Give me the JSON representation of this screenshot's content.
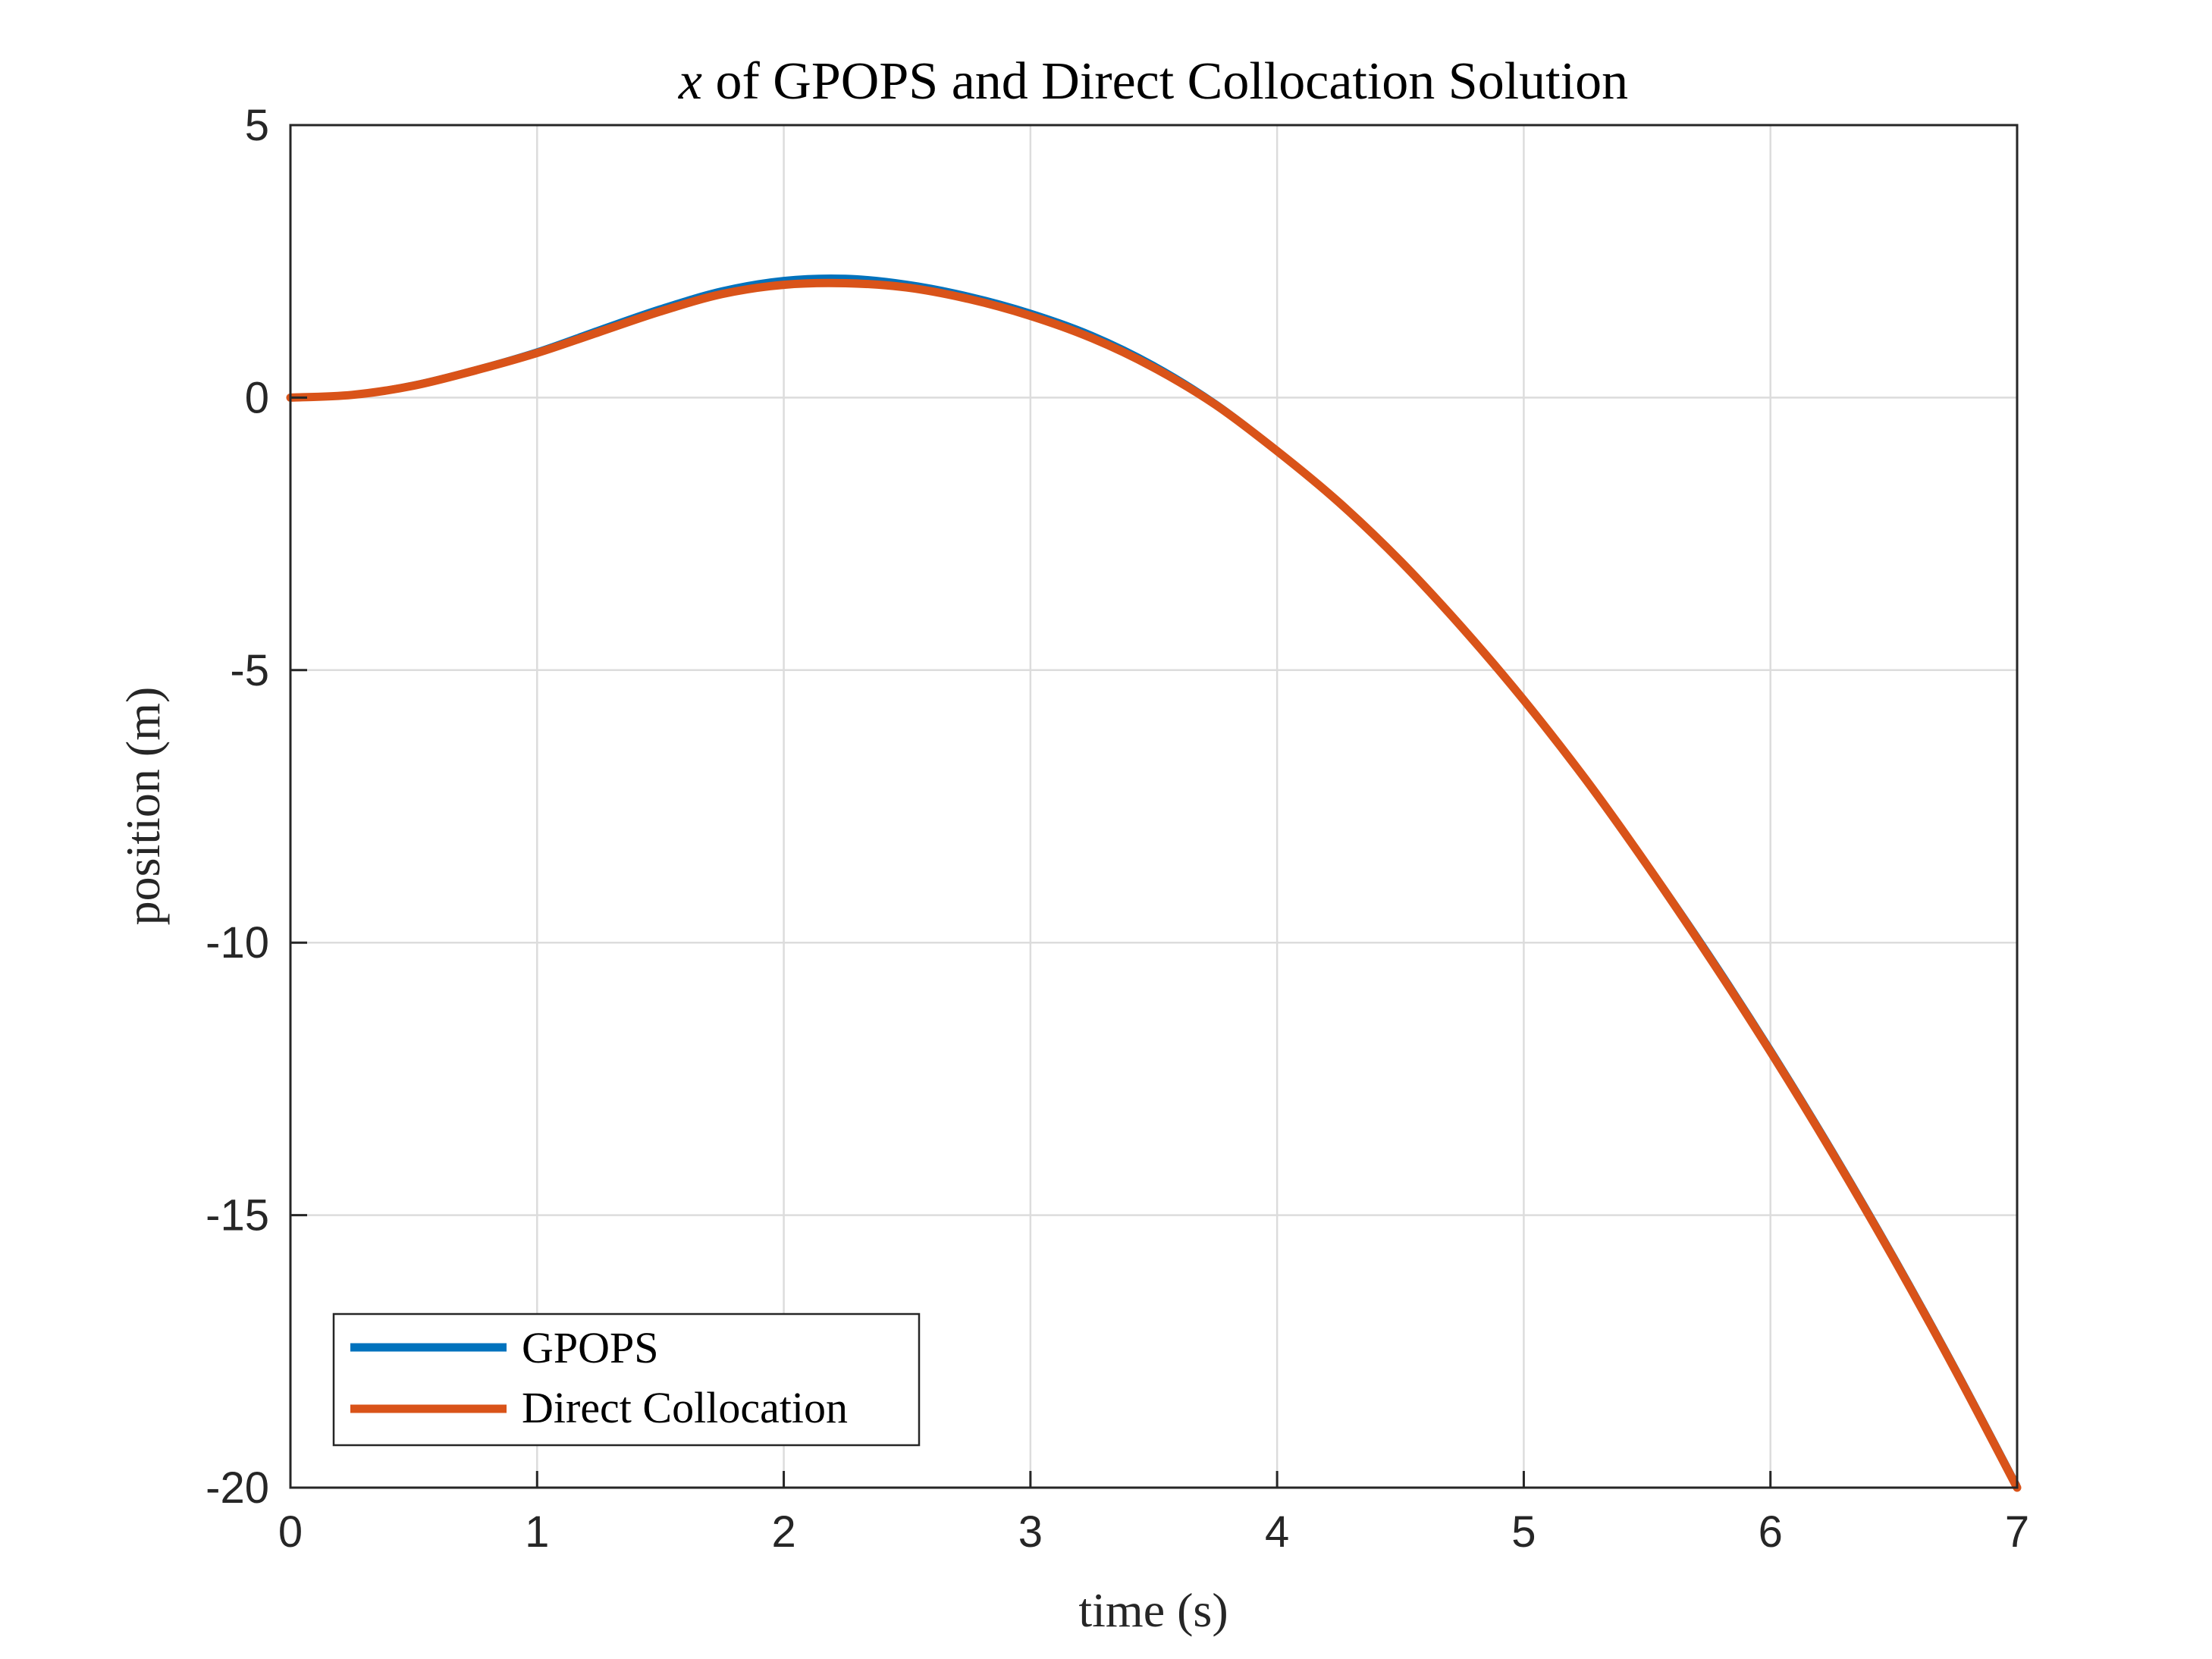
{
  "chart_data": {
    "type": "line",
    "title": "x of GPOPS and Direct Collocation Solution",
    "title_var": "x",
    "title_rest": " of GPOPS and Direct Collocation Solution",
    "xlabel": "time (s)",
    "ylabel": "position (m)",
    "xlim": [
      0,
      7
    ],
    "ylim": [
      -20,
      5
    ],
    "xticks": [
      0,
      1,
      2,
      3,
      4,
      5,
      6,
      7
    ],
    "yticks": [
      5,
      0,
      -5,
      -10,
      -15,
      -20
    ],
    "grid": true,
    "legend_position": "bottom-left",
    "series": [
      {
        "name": "GPOPS",
        "color": "#0072BD",
        "x": [
          0,
          0.25,
          0.5,
          0.75,
          1.0,
          1.25,
          1.5,
          1.75,
          2.0,
          2.25,
          2.5,
          2.75,
          3.0,
          3.25,
          3.5,
          3.75,
          4.0,
          4.25,
          4.5,
          4.75,
          5.0,
          5.25,
          5.5,
          5.75,
          6.0,
          6.25,
          6.5,
          6.75,
          7.0
        ],
        "y": [
          0,
          0.06,
          0.24,
          0.52,
          0.85,
          1.25,
          1.64,
          1.97,
          2.16,
          2.2,
          2.09,
          1.87,
          1.56,
          1.15,
          0.6,
          -0.1,
          -0.96,
          -1.9,
          -2.98,
          -4.2,
          -5.52,
          -6.98,
          -8.55,
          -10.2,
          -11.95,
          -13.8,
          -15.75,
          -17.8,
          -19.95
        ]
      },
      {
        "name": "Direct Collocation",
        "color": "#D95319",
        "x": [
          0,
          0.25,
          0.5,
          0.75,
          1.0,
          1.25,
          1.5,
          1.75,
          2.0,
          2.25,
          2.5,
          2.75,
          3.0,
          3.25,
          3.5,
          3.75,
          4.0,
          4.25,
          4.5,
          4.75,
          5.0,
          5.25,
          5.5,
          5.75,
          6.0,
          6.25,
          6.5,
          6.75,
          7.0
        ],
        "y": [
          0,
          0.05,
          0.22,
          0.5,
          0.82,
          1.2,
          1.58,
          1.9,
          2.07,
          2.1,
          2.02,
          1.81,
          1.5,
          1.09,
          0.55,
          -0.13,
          -0.98,
          -1.92,
          -3.0,
          -4.22,
          -5.55,
          -7.0,
          -8.58,
          -10.25,
          -12.0,
          -13.85,
          -15.8,
          -17.85,
          -20.0
        ]
      }
    ]
  }
}
